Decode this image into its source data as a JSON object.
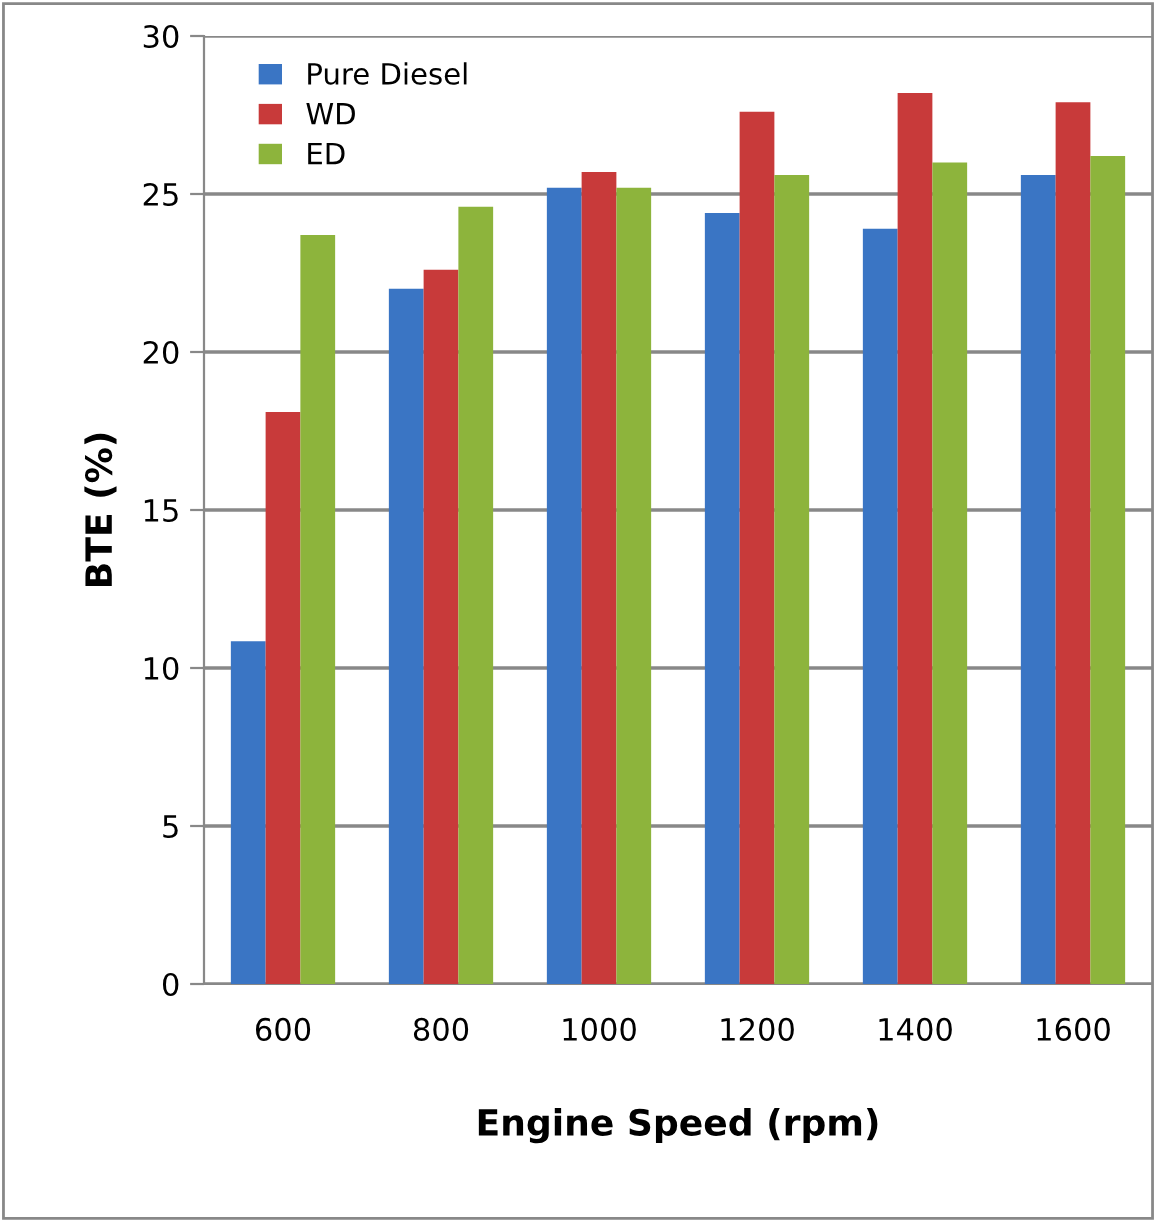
{
  "chart_data": {
    "type": "bar",
    "xlabel": "Engine Speed (rpm)",
    "ylabel": "BTE (%)",
    "categories": [
      "600",
      "800",
      "1000",
      "1200",
      "1400",
      "1600"
    ],
    "series": [
      {
        "name": "Pure Diesel",
        "color": "#3a75c4",
        "values": [
          10.85,
          22.0,
          25.2,
          24.4,
          23.9,
          25.6
        ]
      },
      {
        "name": "WD",
        "color": "#c83a3a",
        "values": [
          18.1,
          22.6,
          25.7,
          27.6,
          28.2,
          27.9
        ]
      },
      {
        "name": "ED",
        "color": "#8db43c",
        "values": [
          23.7,
          24.6,
          25.2,
          25.6,
          26.0,
          26.2
        ]
      }
    ],
    "ylim": [
      0,
      30
    ],
    "yticks": [
      0,
      5,
      10,
      15,
      20,
      25,
      30
    ],
    "grid": "y",
    "legend": "top left"
  }
}
